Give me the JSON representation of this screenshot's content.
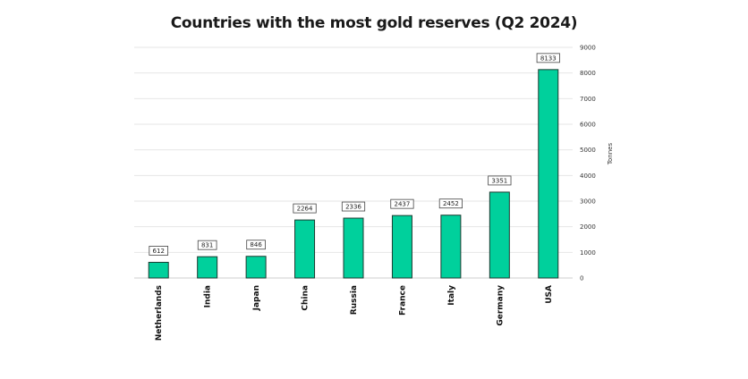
{
  "chart_data": {
    "type": "bar",
    "title": "Countries with the most gold reserves (Q2 2024)",
    "categories": [
      "Netherlands",
      "India",
      "Japan",
      "China",
      "Russia",
      "France",
      "Italy",
      "Germany",
      "USA"
    ],
    "values": [
      612,
      831,
      846,
      2264,
      2336,
      2437,
      2452,
      3351,
      8133
    ],
    "xlabel": "",
    "ylabel": "Tonnes",
    "ylim": [
      0,
      9000
    ],
    "yticks": [
      0,
      1000,
      2000,
      3000,
      4000,
      5000,
      6000,
      7000,
      8000,
      9000
    ],
    "grid": true,
    "y_axis_side": "right",
    "bar_color": "#00d09c",
    "data_labels": true
  }
}
